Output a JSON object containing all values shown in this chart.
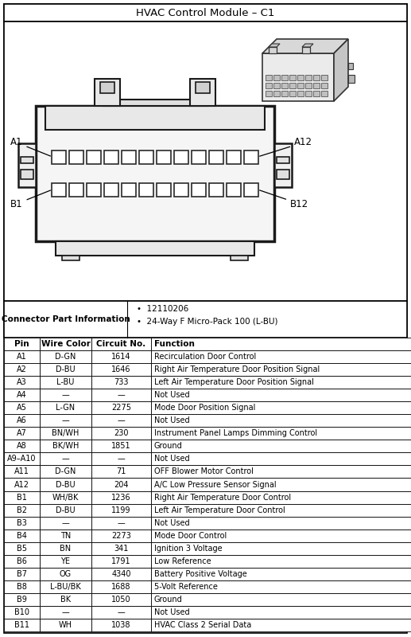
{
  "title": "HVAC Control Module – C1",
  "connector_part_info_label": "Connector Part Information",
  "connector_bullets": [
    "12110206",
    "24-Way F Micro-Pack 100 (L-BU)"
  ],
  "table_headers": [
    "Pin",
    "Wire Color",
    "Circuit No.",
    "Function"
  ],
  "table_rows": [
    [
      "A1",
      "D-GN",
      "1614",
      "Recirculation Door Control"
    ],
    [
      "A2",
      "D-BU",
      "1646",
      "Right Air Temperature Door Position Signal"
    ],
    [
      "A3",
      "L-BU",
      "733",
      "Left Air Temperature Door Position Signal"
    ],
    [
      "A4",
      "—",
      "—",
      "Not Used"
    ],
    [
      "A5",
      "L-GN",
      "2275",
      "Mode Door Position Signal"
    ],
    [
      "A6",
      "—",
      "—",
      "Not Used"
    ],
    [
      "A7",
      "BN/WH",
      "230",
      "Instrument Panel Lamps Dimming Control"
    ],
    [
      "A8",
      "BK/WH",
      "1851",
      "Ground"
    ],
    [
      "A9–A10",
      "—",
      "—",
      "Not Used"
    ],
    [
      "A11",
      "D-GN",
      "71",
      "OFF Blower Motor Control"
    ],
    [
      "A12",
      "D-BU",
      "204",
      "A/C Low Pressure Sensor Signal"
    ],
    [
      "B1",
      "WH/BK",
      "1236",
      "Right Air Temperature Door Control"
    ],
    [
      "B2",
      "D-BU",
      "1199",
      "Left Air Temperature Door Control"
    ],
    [
      "B3",
      "—",
      "—",
      "Not Used"
    ],
    [
      "B4",
      "TN",
      "2273",
      "Mode Door Control"
    ],
    [
      "B5",
      "BN",
      "341",
      "Ignition 3 Voltage"
    ],
    [
      "B6",
      "YE",
      "1791",
      "Low Reference"
    ],
    [
      "B7",
      "OG",
      "4340",
      "Battery Positive Voltage"
    ],
    [
      "B8",
      "L-BU/BK",
      "1688",
      "5-Volt Reference"
    ],
    [
      "B9",
      "BK",
      "1050",
      "Ground"
    ],
    [
      "B10",
      "—",
      "—",
      "Not Used"
    ],
    [
      "B11",
      "WH",
      "1038",
      "HVAC Class 2 Serial Data"
    ]
  ],
  "bg_color": "#ffffff",
  "title_fontsize": 9.5,
  "table_fontsize": 7.0,
  "header_fontsize": 7.5,
  "info_fontsize": 7.5
}
